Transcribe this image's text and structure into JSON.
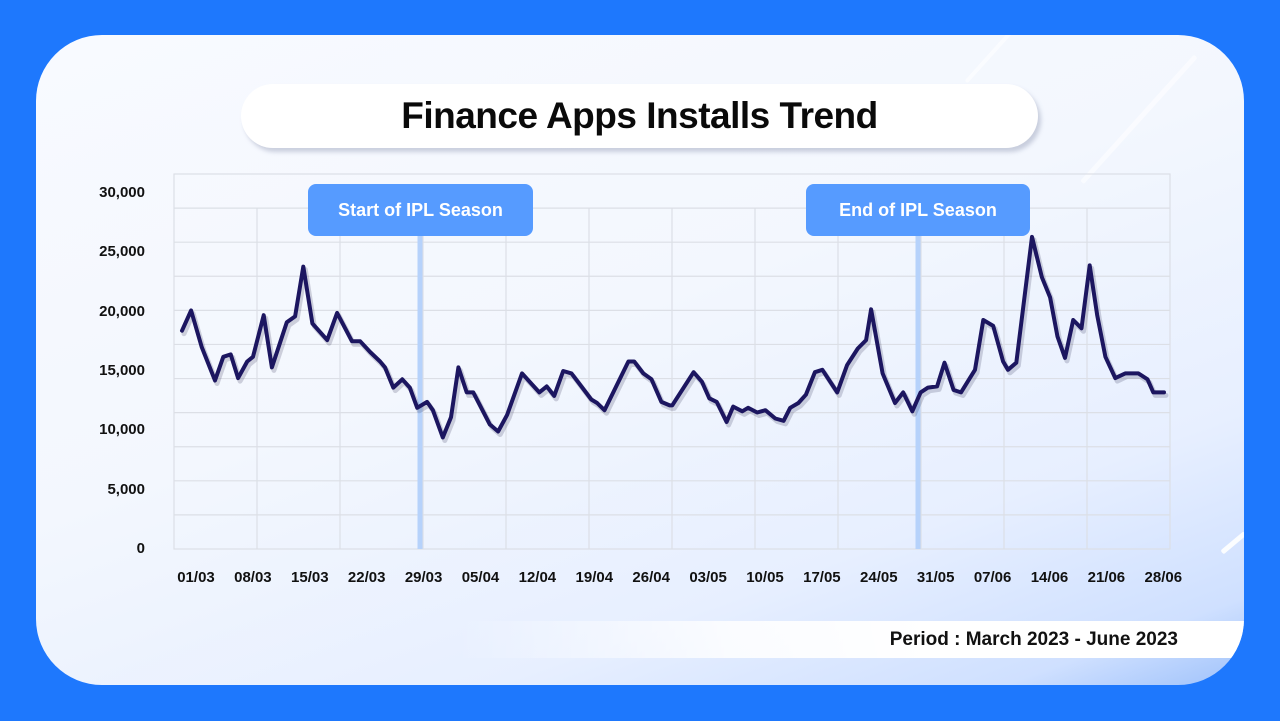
{
  "page": {
    "background_color": "#1e78fd",
    "title": "Finance Apps Installs Trend",
    "period": "Period : March 2023 - June 2023"
  },
  "annotations": [
    {
      "label": "Start of IPL Season",
      "date": "31/03",
      "color": "#569bff"
    },
    {
      "label": "End of IPL Season",
      "date": "29/05",
      "color": "#569bff"
    }
  ],
  "chart_data": {
    "type": "line",
    "title": "Finance Apps Installs Trend",
    "subtitle": "Period : March 2023 - June 2023",
    "xlabel": "",
    "ylabel": "",
    "ylim": [
      0,
      30000
    ],
    "yticks": [
      0,
      5000,
      10000,
      15000,
      20000,
      25000,
      30000
    ],
    "ytick_labels": [
      "0",
      "5,000",
      "10,000",
      "15,000",
      "20,000",
      "25,000",
      "30,000"
    ],
    "xtick_labels": [
      "01/03",
      "08/03",
      "15/03",
      "22/03",
      "29/03",
      "05/04",
      "12/04",
      "19/04",
      "26/04",
      "03/05",
      "10/05",
      "17/05",
      "24/05",
      "31/05",
      "07/06",
      "14/06",
      "21/06",
      "28/06"
    ],
    "grid": true,
    "legend": null,
    "line_color": "#1c1660",
    "annotations": [
      {
        "label": "Start of IPL Season",
        "x": "31/03"
      },
      {
        "label": "End of IPL Season",
        "x": "29/05"
      }
    ],
    "x_range_days": [
      0,
      119
    ],
    "series": [
      {
        "name": "Installs",
        "points": [
          [
            0,
            18400
          ],
          [
            1.1,
            20100
          ],
          [
            2.4,
            17000
          ],
          [
            4.0,
            14200
          ],
          [
            5.0,
            16200
          ],
          [
            5.9,
            16400
          ],
          [
            6.8,
            14400
          ],
          [
            7.9,
            15800
          ],
          [
            8.6,
            16200
          ],
          [
            9.9,
            19700
          ],
          [
            10.9,
            15300
          ],
          [
            12.7,
            19100
          ],
          [
            13.7,
            19600
          ],
          [
            14.7,
            23800
          ],
          [
            15.8,
            19000
          ],
          [
            17.6,
            17600
          ],
          [
            18.8,
            19900
          ],
          [
            20.6,
            17500
          ],
          [
            21.6,
            17500
          ],
          [
            22.8,
            16600
          ],
          [
            24.0,
            15800
          ],
          [
            24.6,
            15300
          ],
          [
            25.6,
            13600
          ],
          [
            26.7,
            14300
          ],
          [
            27.6,
            13600
          ],
          [
            28.5,
            11900
          ],
          [
            29.7,
            12400
          ],
          [
            30.4,
            11700
          ],
          [
            31.6,
            9400
          ],
          [
            32.6,
            11100
          ],
          [
            33.5,
            15300
          ],
          [
            34.5,
            13200
          ],
          [
            35.3,
            13200
          ],
          [
            37.3,
            10500
          ],
          [
            38.3,
            9900
          ],
          [
            39.4,
            11300
          ],
          [
            41.2,
            14800
          ],
          [
            43.3,
            13200
          ],
          [
            44.2,
            13700
          ],
          [
            45.1,
            12900
          ],
          [
            46.2,
            15000
          ],
          [
            47.2,
            14800
          ],
          [
            49.6,
            12600
          ],
          [
            50.3,
            12300
          ],
          [
            51.2,
            11700
          ],
          [
            54.1,
            15800
          ],
          [
            54.8,
            15800
          ],
          [
            55.9,
            14800
          ],
          [
            56.9,
            14300
          ],
          [
            58.1,
            12400
          ],
          [
            59.1,
            12100
          ],
          [
            59.4,
            12100
          ],
          [
            62.0,
            14900
          ],
          [
            63.0,
            14100
          ],
          [
            63.9,
            12700
          ],
          [
            64.8,
            12400
          ],
          [
            66.0,
            10700
          ],
          [
            66.8,
            12000
          ],
          [
            67.9,
            11600
          ],
          [
            68.6,
            11900
          ],
          [
            69.7,
            11500
          ],
          [
            70.7,
            11700
          ],
          [
            71.9,
            11000
          ],
          [
            72.9,
            10800
          ],
          [
            73.7,
            11900
          ],
          [
            74.7,
            12300
          ],
          [
            75.6,
            13000
          ],
          [
            76.7,
            14900
          ],
          [
            77.6,
            15100
          ],
          [
            79.4,
            13200
          ],
          [
            80.6,
            15500
          ],
          [
            81.9,
            16900
          ],
          [
            82.9,
            17600
          ],
          [
            83.5,
            20200
          ],
          [
            84.9,
            14800
          ],
          [
            86.4,
            12300
          ],
          [
            87.4,
            13200
          ],
          [
            88.5,
            11600
          ],
          [
            89.5,
            13200
          ],
          [
            90.4,
            13600
          ],
          [
            91.5,
            13700
          ],
          [
            92.4,
            15700
          ],
          [
            93.5,
            13400
          ],
          [
            94.4,
            13200
          ],
          [
            96.1,
            15100
          ],
          [
            97.1,
            19300
          ],
          [
            98.3,
            18800
          ],
          [
            99.5,
            15800
          ],
          [
            100.1,
            15100
          ],
          [
            101.1,
            15700
          ],
          [
            103.0,
            26300
          ],
          [
            104.2,
            22900
          ],
          [
            105.2,
            21200
          ],
          [
            106.1,
            17900
          ],
          [
            107.0,
            16100
          ],
          [
            108.0,
            19300
          ],
          [
            109.0,
            18600
          ],
          [
            110.0,
            23900
          ],
          [
            110.9,
            19700
          ],
          [
            111.9,
            16200
          ],
          [
            113.1,
            14400
          ],
          [
            114.3,
            14800
          ],
          [
            115.9,
            14800
          ],
          [
            117.0,
            14300
          ],
          [
            117.7,
            13200
          ],
          [
            119.0,
            13200
          ]
        ]
      }
    ]
  }
}
